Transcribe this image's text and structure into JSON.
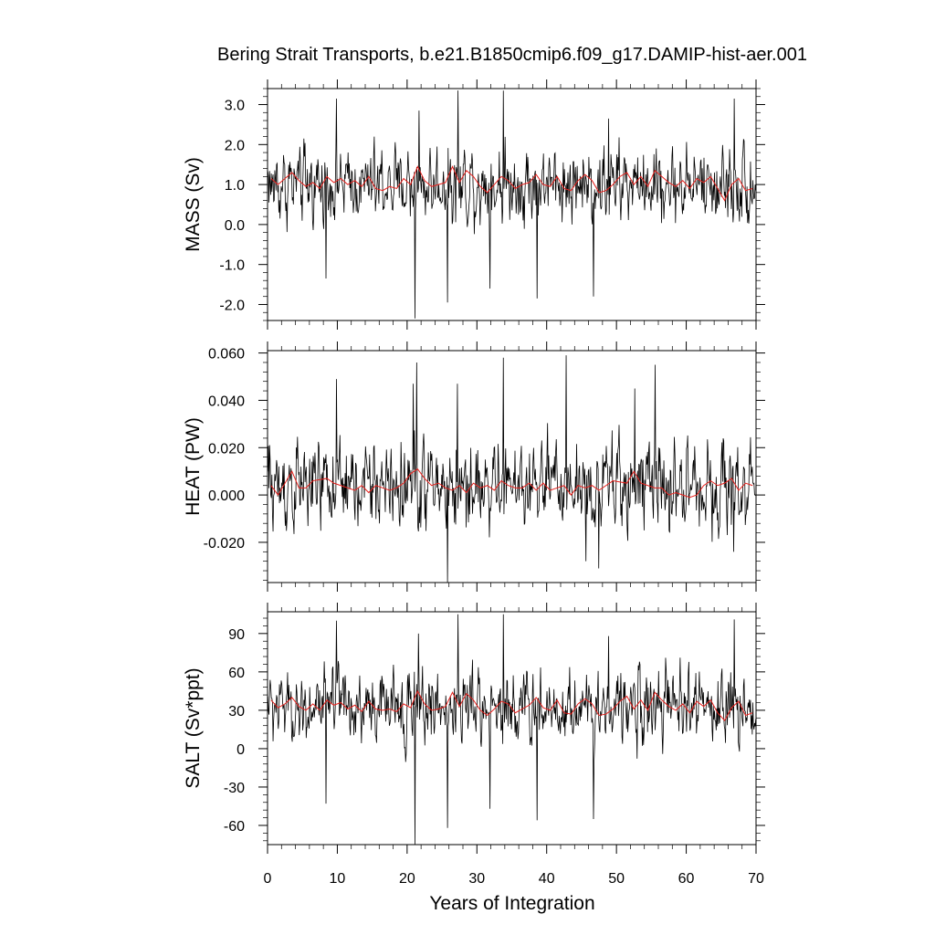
{
  "chart_data": {
    "type": "line",
    "title": "Bering Strait Transports, b.e21.B1850cmip6.f09_g17.DAMIP-hist-aer.001",
    "xlabel": "Years of Integration",
    "xlim": [
      0,
      70
    ],
    "x_ticks": [
      "0",
      "10",
      "20",
      "30",
      "40",
      "50",
      "60",
      "70"
    ],
    "colors": {
      "monthly": "#000000",
      "annual": "#e8201c"
    },
    "panels": [
      {
        "ylabel": "MASS (Sv)",
        "ylim": [
          -2.4,
          3.4
        ],
        "y_ticks": [
          "3.0",
          "2.0",
          "1.0",
          "0.0",
          "-1.0",
          "-2.0"
        ],
        "monthly_mean": 1.0,
        "monthly_spread": 0.6,
        "spikes": [
          [
            9.9,
            3.15
          ],
          [
            21.1,
            -2.35
          ],
          [
            21.7,
            2.85
          ],
          [
            25.8,
            -1.95
          ],
          [
            27.3,
            3.35
          ],
          [
            33.8,
            3.35
          ],
          [
            31.9,
            -1.6
          ],
          [
            38.6,
            -1.85
          ],
          [
            46.7,
            -1.8
          ],
          [
            66.9,
            3.15
          ],
          [
            8.4,
            -1.35
          ],
          [
            48.9,
            2.65
          ]
        ],
        "annual": [
          1.15,
          1.0,
          1.15,
          1.3,
          1.1,
          0.95,
          1.05,
          0.9,
          1.2,
          1.05,
          1.15,
          1.0,
          1.1,
          0.95,
          1.2,
          0.9,
          0.85,
          0.95,
          0.9,
          1.15,
          1.0,
          1.45,
          1.1,
          0.95,
          1.0,
          1.05,
          1.45,
          1.05,
          1.35,
          1.2,
          0.95,
          0.8,
          1.0,
          1.2,
          1.1,
          0.9,
          1.0,
          1.05,
          1.25,
          1.0,
          0.95,
          1.2,
          0.9,
          0.85,
          1.1,
          1.25,
          1.1,
          0.8,
          0.85,
          1.0,
          1.2,
          1.3,
          1.0,
          1.2,
          0.95,
          1.35,
          1.2,
          1.05,
          0.95,
          1.1,
          0.9,
          1.15,
          1.05,
          1.2,
          0.9,
          0.6,
          1.0,
          1.15,
          0.85,
          0.9
        ]
      },
      {
        "ylabel": "HEAT (PW)",
        "ylim": [
          -0.037,
          0.061
        ],
        "y_ticks": [
          "0.060",
          "0.040",
          "0.020",
          "0.000",
          "-0.020"
        ],
        "monthly_mean": 0.004,
        "monthly_spread": 0.012,
        "spikes": [
          [
            21.4,
            0.056
          ],
          [
            25.8,
            -0.037
          ],
          [
            33.8,
            0.058
          ],
          [
            42.8,
            0.059
          ],
          [
            55.5,
            0.055
          ],
          [
            45.6,
            -0.028
          ],
          [
            47.5,
            -0.031
          ],
          [
            66.8,
            -0.024
          ],
          [
            9.9,
            0.049
          ],
          [
            20.9,
            0.047
          ],
          [
            27.2,
            0.047
          ],
          [
            52.6,
            0.045
          ]
        ],
        "annual": [
          0.004,
          0.0,
          0.005,
          0.01,
          0.003,
          0.003,
          0.006,
          0.0065,
          0.007,
          0.005,
          0.004,
          0.003,
          0.002,
          0.004,
          0.001,
          0.004,
          0.003,
          0.002,
          0.003,
          0.005,
          0.009,
          0.011,
          0.007,
          0.004,
          0.005,
          0.003,
          0.002,
          0.004,
          0.001,
          0.005,
          0.003,
          0.004,
          0.002,
          0.006,
          0.004,
          0.003,
          0.003,
          0.005,
          0.002,
          0.005,
          0.002,
          0.003,
          0.004,
          0.0,
          0.004,
          0.003,
          0.004,
          0.002,
          0.004,
          0.006,
          0.0055,
          0.005,
          0.01,
          0.005,
          0.004,
          0.003,
          0.003,
          0.0,
          0.001,
          0.0,
          -0.001,
          0.0,
          0.004,
          0.006,
          0.004,
          0.005,
          0.007,
          0.002,
          0.005,
          0.004
        ]
      },
      {
        "ylabel": "SALT (Sv*ppt)",
        "ylim": [
          -75,
          107
        ],
        "y_ticks": [
          "90",
          "60",
          "30",
          "0",
          "-30",
          "-60"
        ],
        "monthly_mean": 33,
        "monthly_spread": 18,
        "spikes": [
          [
            21.1,
            -75
          ],
          [
            25.8,
            -62
          ],
          [
            9.9,
            100
          ],
          [
            27.3,
            105
          ],
          [
            33.8,
            105
          ],
          [
            21.6,
            90
          ],
          [
            38.6,
            -56
          ],
          [
            46.7,
            -55
          ],
          [
            66.9,
            101
          ],
          [
            8.4,
            -43
          ],
          [
            31.9,
            -47
          ],
          [
            48.9,
            88
          ]
        ],
        "annual": [
          38,
          32,
          35,
          40,
          33,
          30,
          35,
          30,
          38,
          34,
          36,
          31,
          34,
          29,
          37,
          31,
          30,
          31,
          29,
          35,
          32,
          45,
          35,
          30,
          31,
          33,
          44,
          33,
          43,
          38,
          30,
          26,
          31,
          37,
          35,
          28,
          31,
          34,
          40,
          32,
          30,
          38,
          28,
          27,
          35,
          39,
          35,
          26,
          27,
          31,
          37,
          41,
          31,
          38,
          30,
          44,
          38,
          33,
          30,
          35,
          28,
          37,
          33,
          38,
          28,
          22,
          32,
          37,
          26,
          28
        ]
      }
    ]
  }
}
